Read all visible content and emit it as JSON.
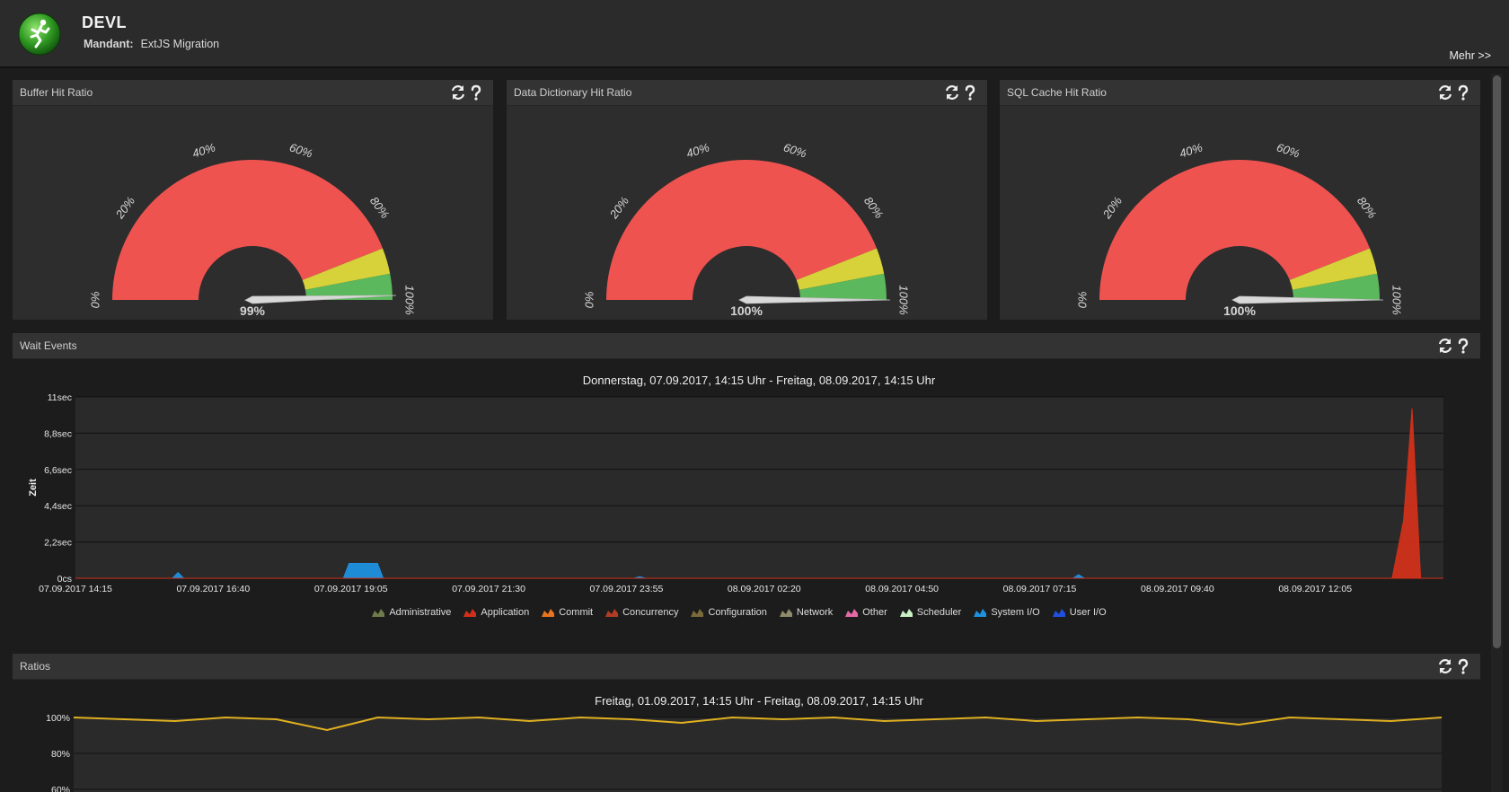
{
  "header": {
    "title": "DEVL",
    "mandant_label": "Mandant:",
    "mandant_value": "ExtJS Migration",
    "more_link": "Mehr >>"
  },
  "colors": {
    "gauge_red": "#ef5350",
    "gauge_yellow": "#d7d23a",
    "gauge_green": "#5cb85c",
    "administrative": "#6f7b4a",
    "application": "#d0301a",
    "commit": "#e8741f",
    "concurrency": "#b23c24",
    "configuration": "#7a6a3a",
    "network": "#8e8a6a",
    "other": "#e46aa6",
    "scheduler": "#c8f0c4",
    "system_io": "#1e90e0",
    "user_io": "#2050e0"
  },
  "gauge_ticks": [
    "0%",
    "20%",
    "40%",
    "60%",
    "80%",
    "100%"
  ],
  "gauges": [
    {
      "title": "Buffer Hit Ratio",
      "value": 99,
      "label": "99%"
    },
    {
      "title": "Data Dictionary Hit Ratio",
      "value": 100,
      "label": "100%"
    },
    {
      "title": "SQL Cache Hit Ratio",
      "value": 100,
      "label": "100%"
    }
  ],
  "panel_tools": {
    "refresh_icon": "refresh-icon",
    "help_icon": "help-icon"
  },
  "wait_events": {
    "panel_title": "Wait Events",
    "chart_data": {
      "type": "area",
      "title": "Donnerstag, 07.09.2017, 14:15 Uhr - Freitag, 08.09.2017, 14:15 Uhr",
      "ylabel": "Zeit",
      "xlabel": "",
      "y_ticks": [
        "0cs",
        "2,2sec",
        "4,4sec",
        "6,6sec",
        "8,8sec",
        "11sec"
      ],
      "ylim": [
        0,
        11
      ],
      "x_ticks": [
        "07.09.2017 14:15",
        "07.09.2017 16:40",
        "07.09.2017 19:05",
        "07.09.2017 21:30",
        "07.09.2017 23:55",
        "08.09.2017 02:20",
        "08.09.2017 04:50",
        "08.09.2017 07:15",
        "08.09.2017 09:40",
        "08.09.2017 12:05"
      ],
      "legend": [
        "Administrative",
        "Application",
        "Commit",
        "Concurrency",
        "Configuration",
        "Network",
        "Other",
        "Scheduler",
        "System I/O",
        "User I/O"
      ],
      "series": [
        {
          "name": "System I/O",
          "x_hours": [
            0,
            1.7,
            1.8,
            1.9,
            4.7,
            4.8,
            4.9,
            5.3,
            5.4,
            9.8,
            9.9,
            10.0,
            17.5,
            17.6,
            17.7,
            23.9
          ],
          "values": [
            0,
            0,
            0.35,
            0,
            0,
            0.9,
            0.9,
            0.9,
            0,
            0,
            0.1,
            0,
            0,
            0.22,
            0,
            0
          ]
        },
        {
          "name": "Application",
          "x_hours": [
            0,
            23.1,
            23.3,
            23.45,
            23.6,
            23.9
          ],
          "values": [
            0,
            0,
            3.5,
            10.3,
            0,
            0
          ]
        }
      ],
      "grid": true
    }
  },
  "ratios": {
    "panel_title": "Ratios",
    "chart_data": {
      "type": "line",
      "title": "Freitag, 01.09.2017, 14:15 Uhr - Freitag, 08.09.2017, 14:15 Uhr",
      "y_ticks": [
        "100%",
        "80%",
        "60%"
      ],
      "ylim": [
        60,
        100
      ],
      "series": [
        {
          "name": "",
          "values": [
            100,
            99,
            98,
            100,
            99,
            93,
            100,
            99,
            100,
            98,
            100,
            99,
            97,
            100,
            99,
            100,
            98,
            99,
            100,
            98,
            99,
            100,
            99,
            96,
            100,
            99,
            98,
            100
          ]
        }
      ],
      "grid": true
    }
  }
}
